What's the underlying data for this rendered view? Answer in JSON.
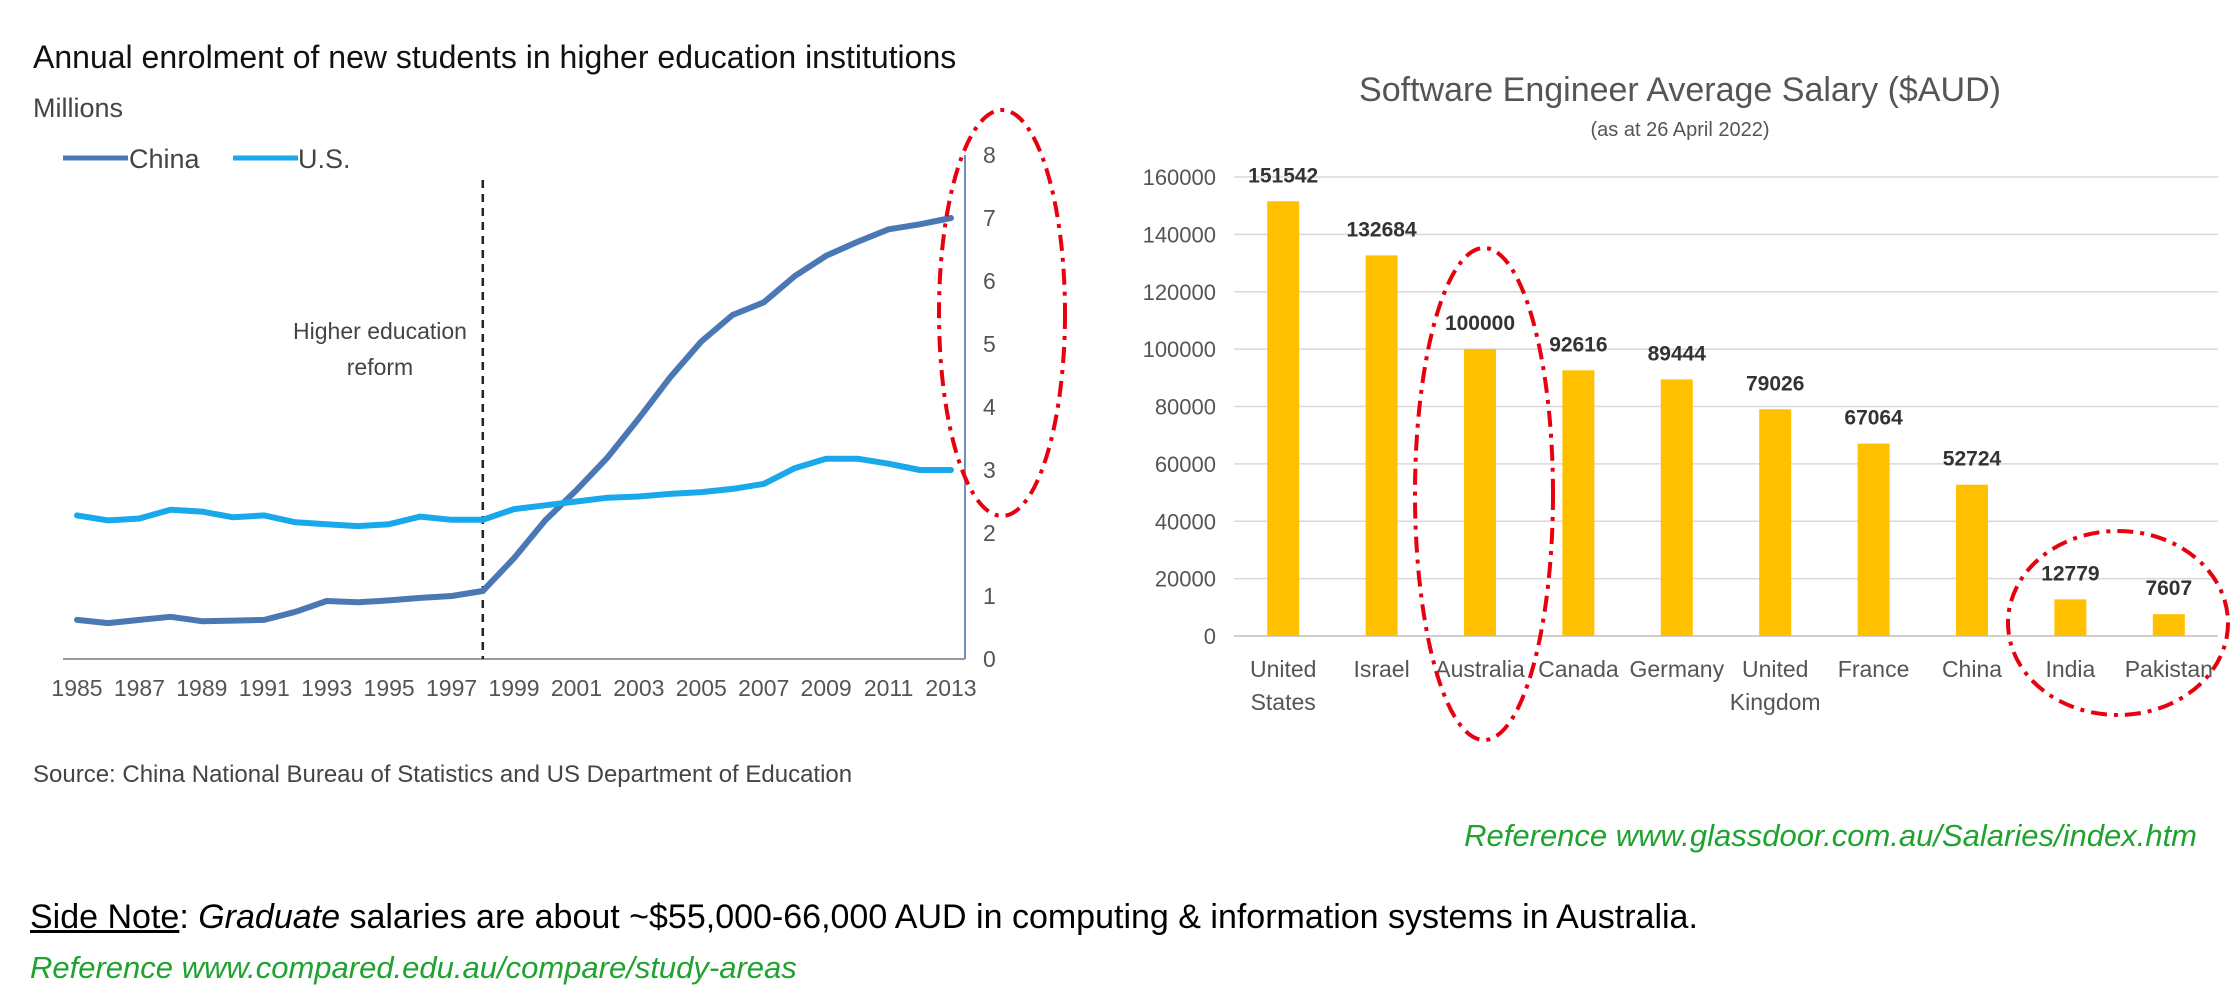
{
  "chart_data": [
    {
      "type": "line",
      "title": "Annual enrolment of new students in higher education institutions",
      "ylabel": "Millions",
      "xlabel": "",
      "x": [
        1985,
        1986,
        1987,
        1988,
        1989,
        1990,
        1991,
        1992,
        1993,
        1994,
        1995,
        1996,
        1997,
        1998,
        1999,
        2000,
        2001,
        2002,
        2003,
        2004,
        2005,
        2006,
        2007,
        2008,
        2009,
        2010,
        2011,
        2012,
        2013
      ],
      "x_tick_labels": [
        "1985",
        "1987",
        "1989",
        "1991",
        "1993",
        "1995",
        "1997",
        "1999",
        "2001",
        "2003",
        "2005",
        "2007",
        "2009",
        "2011",
        "2013"
      ],
      "y_tick_labels": [
        "0",
        "1",
        "2",
        "3",
        "4",
        "5",
        "6",
        "7",
        "8"
      ],
      "ylim": [
        0,
        8
      ],
      "y_axis_side": "right",
      "grid": false,
      "legend_position": "top-left",
      "series": [
        {
          "name": "China",
          "color": "#4a78b5",
          "values": [
            0.62,
            0.57,
            0.62,
            0.67,
            0.6,
            0.61,
            0.62,
            0.75,
            0.92,
            0.9,
            0.93,
            0.97,
            1.0,
            1.08,
            1.6,
            2.2,
            2.68,
            3.2,
            3.82,
            4.47,
            5.04,
            5.46,
            5.66,
            6.08,
            6.4,
            6.62,
            6.82,
            6.9,
            7.0
          ]
        },
        {
          "name": "U.S.",
          "color": "#19a9ea",
          "values": [
            2.28,
            2.2,
            2.23,
            2.37,
            2.34,
            2.25,
            2.28,
            2.17,
            2.14,
            2.11,
            2.14,
            2.26,
            2.21,
            2.21,
            2.38,
            2.44,
            2.5,
            2.56,
            2.58,
            2.62,
            2.65,
            2.7,
            2.78,
            3.03,
            3.18,
            3.18,
            3.1,
            3.0,
            3.0
          ]
        }
      ],
      "annotation": {
        "text_line1": "Higher education",
        "text_line2": "reform",
        "x": 1998
      },
      "source": "Source: China National Bureau of Statistics and US Department of Education"
    },
    {
      "type": "bar",
      "title": "Software Engineer Average Salary ($AUD)",
      "subtitle": "(as at 26 April 2022)",
      "categories": [
        [
          "United",
          "States"
        ],
        [
          "Israel"
        ],
        [
          "Australia"
        ],
        [
          "Canada"
        ],
        [
          "Germany"
        ],
        [
          "United",
          "Kingdom"
        ],
        [
          "France"
        ],
        [
          "China"
        ],
        [
          "India"
        ],
        [
          "Pakistan"
        ]
      ],
      "values": [
        151542,
        132684,
        100000,
        92616,
        89444,
        79026,
        67064,
        52724,
        12779,
        7607
      ],
      "value_labels": [
        "151542",
        "132684",
        "100000",
        "92616",
        "89444",
        "79026",
        "67064",
        "52724",
        "12779",
        "7607"
      ],
      "y_tick_labels": [
        "0",
        "20000",
        "40000",
        "60000",
        "80000",
        "100000",
        "120000",
        "140000",
        "160000"
      ],
      "ylim": [
        0,
        160000
      ],
      "grid": true,
      "bar_color": "#ffc000",
      "xlabel": "",
      "ylabel": ""
    }
  ],
  "highlight_color": "#e8000f",
  "references": {
    "salary_ref": "Reference www.glassdoor.com.au/Salaries/index.htm",
    "note_label": "Side Note",
    "note_colon": ": ",
    "note_italic": "Graduate",
    "note_rest": " salaries are about ~$55,000-66,000 AUD in computing & information systems in Australia.",
    "note_ref": "Reference www.compared.edu.au/compare/study-areas"
  }
}
